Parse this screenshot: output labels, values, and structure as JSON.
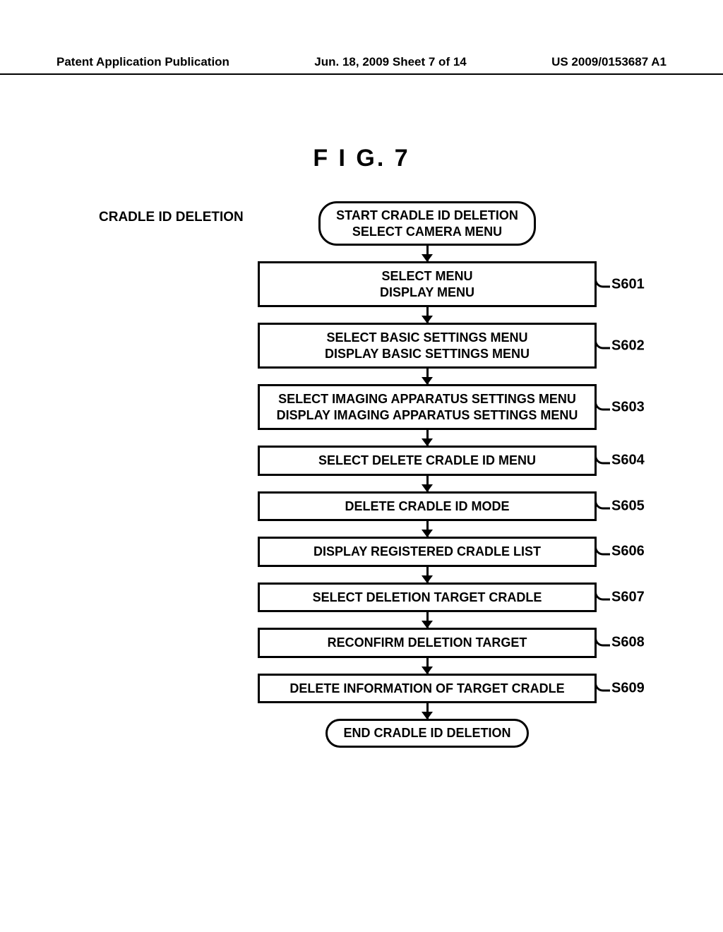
{
  "header": {
    "left": "Patent Application Publication",
    "center": "Jun. 18, 2009  Sheet 7 of 14",
    "right": "US 2009/0153687 A1"
  },
  "figure": {
    "title": "F I G.   7",
    "side_label": "CRADLE ID DELETION",
    "start": {
      "line1": "START CRADLE ID DELETION",
      "line2": "SELECT CAMERA MENU"
    },
    "steps": [
      {
        "id": "S601",
        "line1": "SELECT MENU",
        "line2": "DISPLAY MENU"
      },
      {
        "id": "S602",
        "line1": "SELECT BASIC SETTINGS MENU",
        "line2": "DISPLAY BASIC SETTINGS MENU"
      },
      {
        "id": "S603",
        "line1": "SELECT IMAGING APPARATUS SETTINGS MENU",
        "line2": "DISPLAY IMAGING APPARATUS SETTINGS MENU"
      },
      {
        "id": "S604",
        "line1": "SELECT DELETE CRADLE ID MENU",
        "line2": ""
      },
      {
        "id": "S605",
        "line1": "DELETE CRADLE ID MODE",
        "line2": ""
      },
      {
        "id": "S606",
        "line1": "DISPLAY REGISTERED CRADLE LIST",
        "line2": ""
      },
      {
        "id": "S607",
        "line1": "SELECT DELETION TARGET CRADLE",
        "line2": ""
      },
      {
        "id": "S608",
        "line1": "RECONFIRM DELETION TARGET",
        "line2": ""
      },
      {
        "id": "S609",
        "line1": "DELETE INFORMATION OF TARGET CRADLE",
        "line2": ""
      }
    ],
    "end": "END CRADLE ID DELETION"
  },
  "style": {
    "border_color": "#000000",
    "background": "#ffffff",
    "border_width": 3,
    "terminal_radius": 26,
    "font_size_box": 18,
    "font_size_label": 20,
    "font_size_title": 34,
    "font_size_header": 17
  }
}
